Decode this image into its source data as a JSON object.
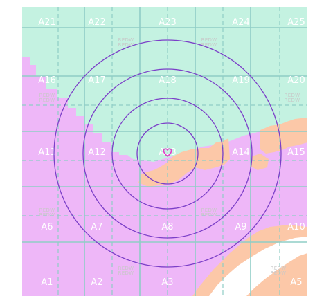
{
  "map": {
    "colors": {
      "water": "#c4f2e1",
      "land_purple": "#eeb7f8",
      "land_orange": "#fcc8a8",
      "white": "#ffffff",
      "grid_line": "#8fcdc6",
      "ring": "#7b3fc8",
      "marker": "#e040c8"
    },
    "grid_labels": [
      [
        "A21",
        "A22",
        "A23",
        "A24",
        "A25"
      ],
      [
        "A16",
        "A17",
        "A18",
        "A19",
        "A20"
      ],
      [
        "A11",
        "A12",
        "A13",
        "A14",
        "A15"
      ],
      [
        "A6",
        "A7",
        "A8",
        "A9",
        "A10"
      ],
      [
        "A1",
        "A2",
        "A3",
        "A4",
        "A5"
      ]
    ],
    "watermark_line1": "REDW",
    "watermark_line2": "REDW",
    "center_marker_icon": "heart-marker-icon",
    "range_rings_count": 4
  }
}
